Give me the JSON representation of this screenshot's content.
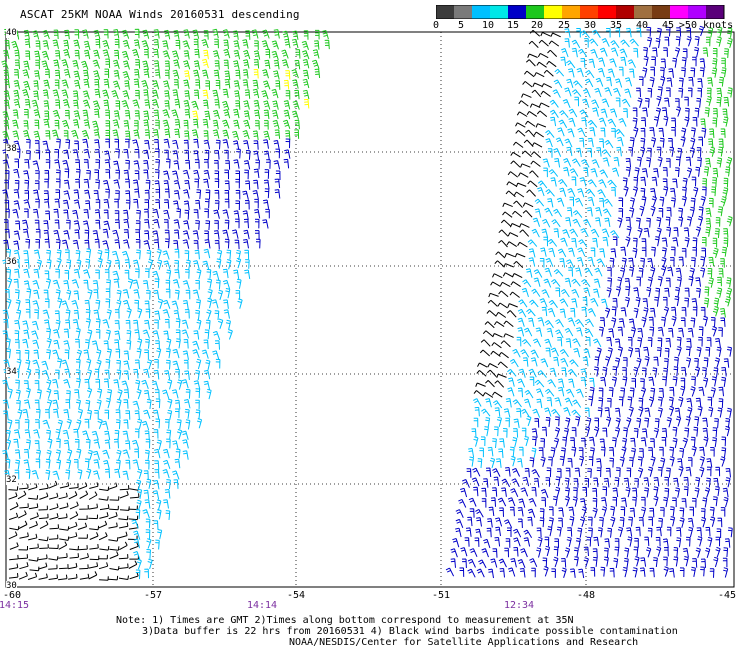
{
  "title": "ASCAT 25KM NOAA Winds 20160531 descending",
  "colorbar": {
    "labels": [
      "0",
      "5",
      "10",
      "15",
      "20",
      "25",
      "30",
      "35",
      "40",
      "45",
      ">50 knots"
    ],
    "colors": [
      "#3c3c3c",
      "#7a7a7a",
      "#00c0ff",
      "#00e8e8",
      "#0000c8",
      "#1ec81e",
      "#ffff00",
      "#ffa500",
      "#ff4000",
      "#ff0000",
      "#b00000",
      "#a07040",
      "#783c14",
      "#ff00ff",
      "#b000ff",
      "#5a007a"
    ]
  },
  "map": {
    "lat_labels": [
      "40",
      "38",
      "36",
      "34",
      "32",
      "30"
    ],
    "lon_labels": [
      "-60",
      "-57",
      "-54",
      "-51",
      "-48",
      "-45"
    ],
    "pass_times": [
      "14:15",
      "14:14",
      "12:34"
    ],
    "time_color": "#7b2fa0",
    "wind_colors": {
      "contaminated": "#000000",
      "speed_5_10": "#00c0ff",
      "speed_10_15": "#0000c8",
      "speed_15_20": "#1ec81e",
      "speed_20_25": "#ffff00"
    }
  },
  "notes": {
    "line1": "Note: 1) Times are GMT 2)Times along bottom correspond to measurement at 35N",
    "line2": "3)Data buffer is 22 hrs from 20160531 4) Black wind barbs indicate possible contamination",
    "line3": "NOAA/NESDIS/Center for Satellite Applications and Research"
  }
}
